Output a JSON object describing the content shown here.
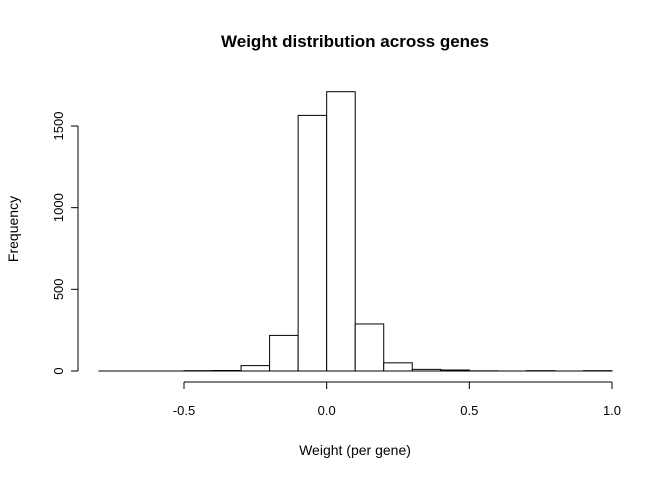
{
  "chart_data": {
    "type": "bar",
    "title": "Weight distribution across genes",
    "xlabel": "Weight (per gene)",
    "ylabel": "Frequency",
    "bin_width": 0.1,
    "bins": [
      {
        "start": -0.8,
        "end": -0.7,
        "count": 0
      },
      {
        "start": -0.7,
        "end": -0.6,
        "count": 0
      },
      {
        "start": -0.6,
        "end": -0.5,
        "count": 0
      },
      {
        "start": -0.5,
        "end": -0.4,
        "count": 2
      },
      {
        "start": -0.4,
        "end": -0.3,
        "count": 3
      },
      {
        "start": -0.3,
        "end": -0.2,
        "count": 33
      },
      {
        "start": -0.2,
        "end": -0.1,
        "count": 218
      },
      {
        "start": -0.1,
        "end": 0.0,
        "count": 1565
      },
      {
        "start": 0.0,
        "end": 0.1,
        "count": 1710
      },
      {
        "start": 0.1,
        "end": 0.2,
        "count": 288
      },
      {
        "start": 0.2,
        "end": 0.3,
        "count": 50
      },
      {
        "start": 0.3,
        "end": 0.4,
        "count": 10
      },
      {
        "start": 0.4,
        "end": 0.5,
        "count": 6
      },
      {
        "start": 0.5,
        "end": 0.6,
        "count": 1
      },
      {
        "start": 0.6,
        "end": 0.7,
        "count": 0
      },
      {
        "start": 0.7,
        "end": 0.8,
        "count": 2
      },
      {
        "start": 0.8,
        "end": 0.9,
        "count": 0
      },
      {
        "start": 0.9,
        "end": 1.0,
        "count": 2
      }
    ],
    "xlim": [
      -0.8,
      1.0
    ],
    "ylim": [
      0,
      1750
    ],
    "x_ticks": [
      -0.5,
      0.0,
      0.5,
      1.0
    ],
    "x_tick_labels": [
      "-0.5",
      "0.0",
      "0.5",
      "1.0"
    ],
    "y_ticks": [
      0,
      500,
      1000,
      1500
    ],
    "y_tick_labels": [
      "0",
      "500",
      "1000",
      "1500"
    ],
    "grid": false,
    "legend": "none"
  }
}
